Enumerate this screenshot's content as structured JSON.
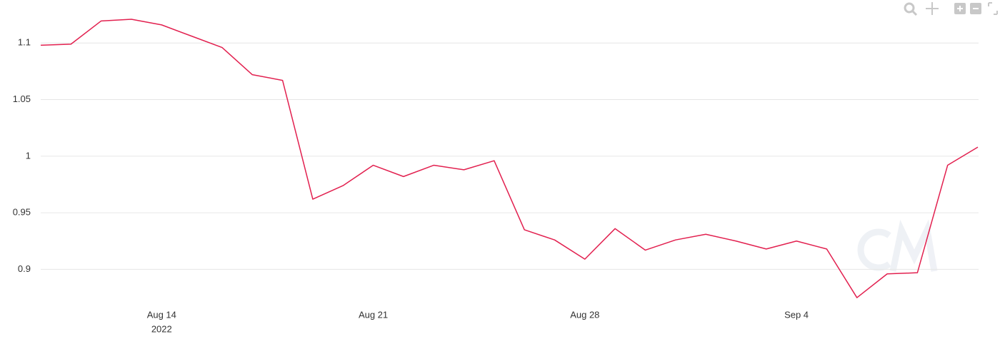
{
  "chart_data": {
    "type": "line",
    "x": [
      "2022-08-10",
      "2022-08-11",
      "2022-08-12",
      "2022-08-13",
      "2022-08-14",
      "2022-08-15",
      "2022-08-16",
      "2022-08-17",
      "2022-08-18",
      "2022-08-19",
      "2022-08-20",
      "2022-08-21",
      "2022-08-22",
      "2022-08-23",
      "2022-08-24",
      "2022-08-25",
      "2022-08-26",
      "2022-08-27",
      "2022-08-28",
      "2022-08-29",
      "2022-08-30",
      "2022-08-31",
      "2022-09-01",
      "2022-09-02",
      "2022-09-03",
      "2022-09-04",
      "2022-09-05",
      "2022-09-06",
      "2022-09-07",
      "2022-09-08",
      "2022-09-09",
      "2022-09-10"
    ],
    "series": [
      {
        "color": "#e2204f",
        "values": [
          1.098,
          1.099,
          1.1195,
          1.121,
          1.116,
          1.106,
          1.096,
          1.072,
          1.067,
          0.962,
          0.974,
          0.992,
          0.982,
          0.992,
          0.988,
          0.996,
          0.935,
          0.926,
          0.909,
          0.936,
          0.917,
          0.926,
          0.931,
          0.925,
          0.918,
          0.925,
          0.918,
          0.875,
          0.896,
          0.897,
          0.992,
          1.008
        ]
      }
    ],
    "xlim": [
      "2022-08-10",
      "2022-09-10"
    ],
    "xticks": [
      {
        "value": "2022-08-14",
        "label": "Aug 14"
      },
      {
        "value": "2022-08-21",
        "label": "Aug 21"
      },
      {
        "value": "2022-08-28",
        "label": "Aug 28"
      },
      {
        "value": "2022-09-04",
        "label": "Sep 4"
      }
    ],
    "x_year_label": "2022",
    "ylim": [
      0.87,
      1.138
    ],
    "yticks": [
      0.9,
      0.95,
      1,
      1.05,
      1.1
    ],
    "grid": true
  }
}
